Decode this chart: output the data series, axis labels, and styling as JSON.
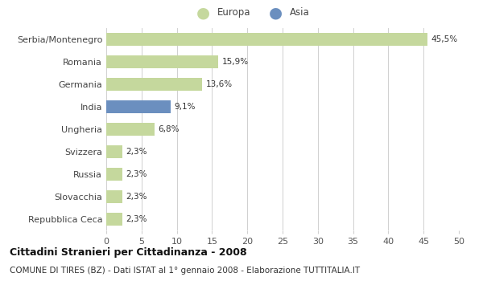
{
  "categories": [
    "Serbia/Montenegro",
    "Romania",
    "Germania",
    "India",
    "Ungheria",
    "Svizzera",
    "Russia",
    "Slovacchia",
    "Repubblica Ceca"
  ],
  "values": [
    45.5,
    15.9,
    13.6,
    9.1,
    6.8,
    2.3,
    2.3,
    2.3,
    2.3
  ],
  "labels": [
    "45,5%",
    "15,9%",
    "13,6%",
    "9,1%",
    "6,8%",
    "2,3%",
    "2,3%",
    "2,3%",
    "2,3%"
  ],
  "colors": [
    "#c5d89d",
    "#c5d89d",
    "#c5d89d",
    "#6b8fbf",
    "#c5d89d",
    "#c5d89d",
    "#c5d89d",
    "#c5d89d",
    "#c5d89d"
  ],
  "legend_europa_color": "#c5d89d",
  "legend_asia_color": "#6b8fbf",
  "xlim": [
    0,
    50
  ],
  "xticks": [
    0,
    5,
    10,
    15,
    20,
    25,
    30,
    35,
    40,
    45,
    50
  ],
  "title": "Cittadini Stranieri per Cittadinanza - 2008",
  "subtitle": "COMUNE DI TIRES (BZ) - Dati ISTAT al 1° gennaio 2008 - Elaborazione TUTTITALIA.IT",
  "background_color": "#ffffff",
  "bar_height": 0.55,
  "grid_color": "#d0d0d0"
}
